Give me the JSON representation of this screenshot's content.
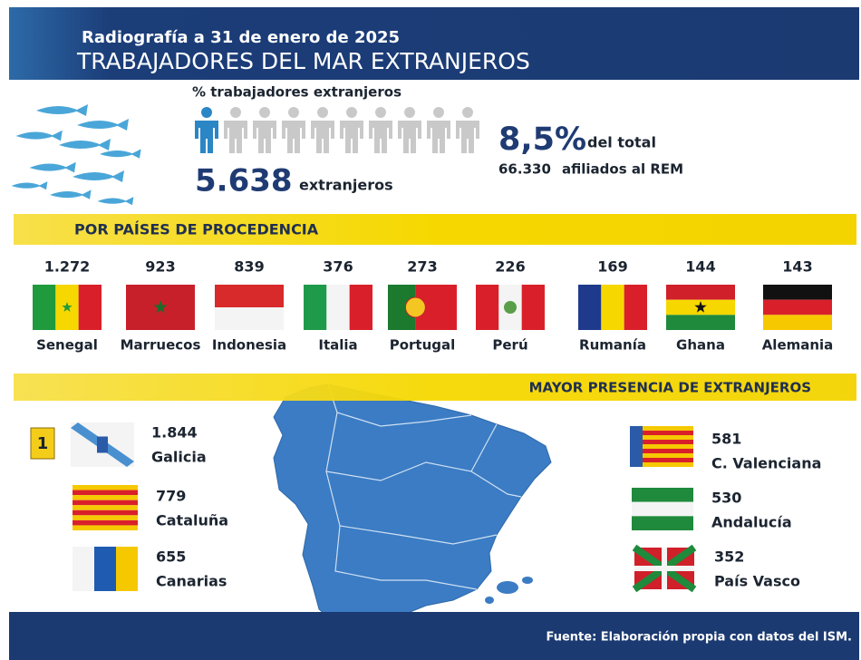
{
  "header": {
    "subtitle": "Radiografía a 31 de enero de 2025",
    "title": "TRABAJADORES DEL MAR EXTRANJEROS"
  },
  "summary": {
    "label": "% trabajadores extranjeros",
    "count": "5.638",
    "count_label": "extranjeros",
    "percent": "8,5%",
    "percent_label": "del total",
    "total": "66.330",
    "total_label": "afiliados al REM"
  },
  "countries": {
    "heading": "POR PAÍSES DE PROCEDENCIA",
    "items": [
      {
        "value": "1.272",
        "name": "Senegal"
      },
      {
        "value": "923",
        "name": "Marruecos"
      },
      {
        "value": "839",
        "name": "Indonesia"
      },
      {
        "value": "376",
        "name": "Italia"
      },
      {
        "value": "273",
        "name": "Portugal"
      },
      {
        "value": "226",
        "name": "Perú"
      },
      {
        "value": "169",
        "name": "Rumanía"
      },
      {
        "value": "144",
        "name": "Ghana"
      },
      {
        "value": "143",
        "name": "Alemania"
      }
    ]
  },
  "regions": {
    "heading": "MAYOR PRESENCIA DE EXTRANJEROS",
    "badge": "1",
    "items": [
      {
        "value": "1.844",
        "name": "Galicia"
      },
      {
        "value": "779",
        "name": "Cataluña"
      },
      {
        "value": "655",
        "name": "Canarias"
      },
      {
        "value": "581",
        "name": "C. Valenciana"
      },
      {
        "value": "530",
        "name": "Andalucía"
      },
      {
        "value": "352",
        "name": "País Vasco"
      }
    ]
  },
  "footer": {
    "source": "Fuente: Elaboración propia con datos del ISM."
  }
}
